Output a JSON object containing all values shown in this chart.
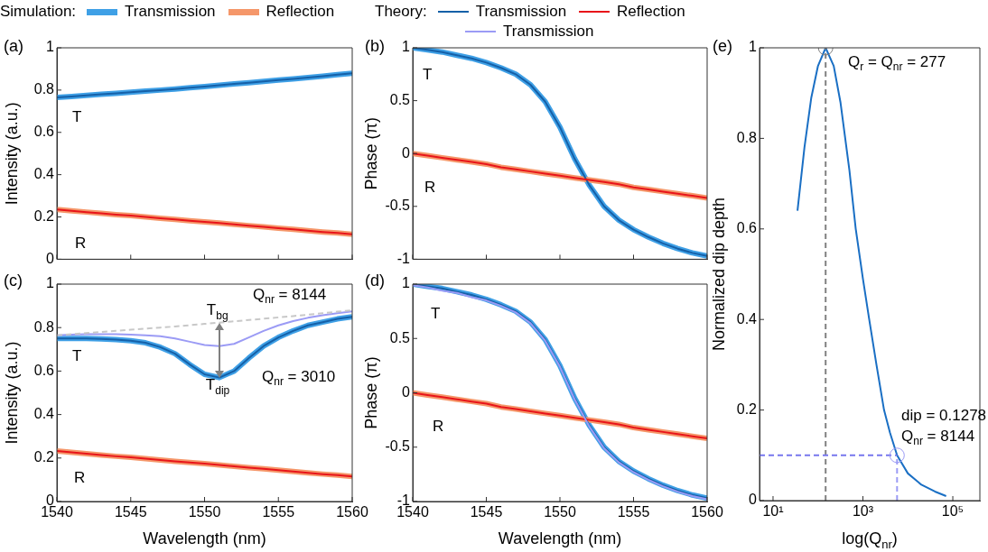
{
  "chart_data": [
    {
      "type": "line",
      "title": "(a)",
      "ylabel": "Intensity (a.u.)",
      "x": [
        1540,
        1541,
        1542,
        1543,
        1544,
        1545,
        1546,
        1547,
        1548,
        1549,
        1550,
        1551,
        1552,
        1553,
        1554,
        1555,
        1556,
        1557,
        1558,
        1559,
        1560
      ],
      "xlim": [
        1540,
        1560
      ],
      "xticks": [
        1540,
        1545,
        1550,
        1555,
        1560
      ],
      "ylim": [
        0,
        1
      ],
      "yticks": [
        0,
        0.2,
        0.4,
        0.6,
        0.8,
        1
      ],
      "tick_labels": "y",
      "series": [
        {
          "color": "#3fa0e6",
          "values": [
            0.765,
            0.77,
            0.775,
            0.78,
            0.785,
            0.79,
            0.795,
            0.8,
            0.805,
            0.811,
            0.817,
            0.823,
            0.829,
            0.835,
            0.841,
            0.847,
            0.853,
            0.859,
            0.866,
            0.873,
            0.88
          ]
        },
        {
          "color": "#f5976a",
          "values": [
            0.235,
            0.229,
            0.223,
            0.217,
            0.211,
            0.206,
            0.2,
            0.194,
            0.188,
            0.182,
            0.177,
            0.171,
            0.165,
            0.159,
            0.153,
            0.147,
            0.141,
            0.135,
            0.129,
            0.124,
            0.118
          ]
        },
        {
          "color": "#1560a8",
          "values": [
            0.765,
            0.77,
            0.775,
            0.78,
            0.785,
            0.79,
            0.795,
            0.8,
            0.805,
            0.811,
            0.817,
            0.823,
            0.829,
            0.835,
            0.841,
            0.847,
            0.853,
            0.859,
            0.866,
            0.873,
            0.88
          ]
        },
        {
          "color": "#e8141a",
          "values": [
            0.235,
            0.229,
            0.223,
            0.217,
            0.211,
            0.206,
            0.2,
            0.194,
            0.188,
            0.182,
            0.177,
            0.171,
            0.165,
            0.159,
            0.153,
            0.147,
            0.141,
            0.135,
            0.129,
            0.124,
            0.118
          ]
        }
      ],
      "annotations": [
        "T",
        "R"
      ]
    },
    {
      "type": "line",
      "title": "(b)",
      "ylabel": "Phase (π)",
      "x": [
        1540,
        1541,
        1542,
        1543,
        1544,
        1545,
        1546,
        1547,
        1548,
        1549,
        1550,
        1551,
        1552,
        1553,
        1554,
        1555,
        1556,
        1557,
        1558,
        1559,
        1560
      ],
      "xlim": [
        1540,
        1560
      ],
      "xticks": [
        1540,
        1545,
        1550,
        1555,
        1560
      ],
      "ylim": [
        -1,
        1
      ],
      "yticks": [
        -1,
        -0.5,
        0,
        0.5,
        1
      ],
      "tick_labels": "y",
      "series": [
        {
          "color": "#3fa0e6",
          "values": [
            1,
            0.98,
            0.96,
            0.93,
            0.9,
            0.86,
            0.81,
            0.75,
            0.65,
            0.49,
            0.25,
            -0.05,
            -0.3,
            -0.5,
            -0.63,
            -0.72,
            -0.79,
            -0.85,
            -0.9,
            -0.94,
            -0.97
          ]
        },
        {
          "color": "#f5976a",
          "values": [
            0,
            -0.02,
            -0.04,
            -0.06,
            -0.08,
            -0.1,
            -0.13,
            -0.15,
            -0.17,
            -0.19,
            -0.21,
            -0.23,
            -0.25,
            -0.27,
            -0.29,
            -0.32,
            -0.34,
            -0.36,
            -0.38,
            -0.4,
            -0.42
          ]
        },
        {
          "color": "#1560a8",
          "values": [
            1,
            0.98,
            0.96,
            0.93,
            0.9,
            0.86,
            0.81,
            0.75,
            0.65,
            0.49,
            0.25,
            -0.05,
            -0.3,
            -0.5,
            -0.63,
            -0.72,
            -0.79,
            -0.85,
            -0.9,
            -0.94,
            -0.97
          ]
        },
        {
          "color": "#e8141a",
          "values": [
            0,
            -0.02,
            -0.04,
            -0.06,
            -0.08,
            -0.1,
            -0.13,
            -0.15,
            -0.17,
            -0.19,
            -0.21,
            -0.23,
            -0.25,
            -0.27,
            -0.29,
            -0.32,
            -0.34,
            -0.36,
            -0.38,
            -0.4,
            -0.42
          ]
        }
      ],
      "annotations": [
        "T",
        "R"
      ]
    },
    {
      "type": "line",
      "title": "(c)",
      "xlabel": "Wavelength (nm)",
      "ylabel": "Intensity (a.u.)",
      "x": [
        1540,
        1541,
        1542,
        1543,
        1544,
        1545,
        1546,
        1547,
        1548,
        1549,
        1550,
        1551,
        1552,
        1553,
        1554,
        1555,
        1556,
        1557,
        1558,
        1559,
        1560
      ],
      "xlim": [
        1540,
        1560
      ],
      "xticks": [
        1540,
        1545,
        1550,
        1555,
        1560
      ],
      "ylim": [
        0,
        1
      ],
      "yticks": [
        0,
        0.2,
        0.4,
        0.6,
        0.8,
        1
      ],
      "legend": "top",
      "series": [
        {
          "name": "Transmission",
          "color": "#3fa0e6",
          "values": [
            0.75,
            0.75,
            0.75,
            0.748,
            0.745,
            0.74,
            0.73,
            0.71,
            0.68,
            0.63,
            0.585,
            0.57,
            0.6,
            0.66,
            0.715,
            0.755,
            0.785,
            0.81,
            0.825,
            0.84,
            0.85
          ]
        },
        {
          "name": "Reflection",
          "color": "#f5976a",
          "values": [
            0.232,
            0.226,
            0.22,
            0.214,
            0.208,
            0.203,
            0.197,
            0.191,
            0.185,
            0.179,
            0.174,
            0.168,
            0.162,
            0.156,
            0.15,
            0.144,
            0.138,
            0.132,
            0.126,
            0.121,
            0.115
          ]
        },
        {
          "name": "Transmission",
          "color": "#1560a8",
          "values": [
            0.75,
            0.75,
            0.75,
            0.748,
            0.745,
            0.74,
            0.73,
            0.71,
            0.68,
            0.63,
            0.585,
            0.57,
            0.6,
            0.66,
            0.715,
            0.755,
            0.785,
            0.81,
            0.825,
            0.84,
            0.85
          ]
        },
        {
          "name": "Reflection",
          "color": "#e8141a",
          "values": [
            0.232,
            0.226,
            0.22,
            0.214,
            0.208,
            0.203,
            0.197,
            0.191,
            0.185,
            0.179,
            0.174,
            0.168,
            0.162,
            0.156,
            0.15,
            0.144,
            0.138,
            0.132,
            0.126,
            0.121,
            0.115
          ]
        },
        {
          "name": "Transmission",
          "color": "#9b9bf5",
          "values": [
            0.765,
            0.768,
            0.77,
            0.77,
            0.77,
            0.768,
            0.765,
            0.76,
            0.75,
            0.735,
            0.72,
            0.715,
            0.725,
            0.755,
            0.785,
            0.81,
            0.83,
            0.845,
            0.857,
            0.866,
            0.875
          ]
        },
        {
          "color": "#c8c8c8",
          "line_style": "dashed",
          "values": [
            0.765,
            0.77,
            0.775,
            0.78,
            0.785,
            0.79,
            0.795,
            0.8,
            0.805,
            0.811,
            0.817,
            0.823,
            0.829,
            0.835,
            0.841,
            0.847,
            0.853,
            0.859,
            0.866,
            0.873,
            0.88
          ]
        }
      ],
      "annotations": [
        "Simulation:",
        "Theory:",
        "T",
        "R",
        {
          "text": "T$_{bg}$",
          "x": 1551,
          "y": 0.823
        },
        {
          "text": "T$_{dip}$",
          "x": 1551,
          "y": 0.57
        },
        "Q$_{nr}$ = 8144",
        "Q$_{nr}$ = 3010"
      ]
    },
    {
      "type": "line",
      "title": "(d)",
      "xlabel": "Wavelength (nm)",
      "ylabel": "Phase (π)",
      "x": [
        1540,
        1541,
        1542,
        1543,
        1544,
        1545,
        1546,
        1547,
        1548,
        1549,
        1550,
        1551,
        1552,
        1553,
        1554,
        1555,
        1556,
        1557,
        1558,
        1559,
        1560
      ],
      "xlim": [
        1540,
        1560
      ],
      "xticks": [
        1540,
        1545,
        1550,
        1555,
        1560
      ],
      "ylim": [
        -1,
        1
      ],
      "yticks": [
        -1,
        -0.5,
        0,
        0.5,
        1
      ],
      "series": [
        {
          "color": "#3fa0e6",
          "values": [
            1,
            0.98,
            0.96,
            0.93,
            0.9,
            0.86,
            0.81,
            0.75,
            0.65,
            0.49,
            0.25,
            -0.05,
            -0.3,
            -0.5,
            -0.63,
            -0.72,
            -0.79,
            -0.85,
            -0.9,
            -0.94,
            -0.97
          ]
        },
        {
          "color": "#f5976a",
          "values": [
            0,
            -0.02,
            -0.04,
            -0.06,
            -0.08,
            -0.1,
            -0.13,
            -0.15,
            -0.17,
            -0.19,
            -0.21,
            -0.23,
            -0.25,
            -0.27,
            -0.29,
            -0.32,
            -0.34,
            -0.36,
            -0.38,
            -0.4,
            -0.42
          ]
        },
        {
          "color": "#1560a8",
          "values": [
            1,
            0.98,
            0.96,
            0.93,
            0.9,
            0.86,
            0.81,
            0.75,
            0.65,
            0.49,
            0.25,
            -0.05,
            -0.3,
            -0.5,
            -0.63,
            -0.72,
            -0.79,
            -0.85,
            -0.9,
            -0.94,
            -0.97
          ]
        },
        {
          "color": "#e8141a",
          "values": [
            0,
            -0.02,
            -0.04,
            -0.06,
            -0.08,
            -0.1,
            -0.13,
            -0.15,
            -0.17,
            -0.19,
            -0.21,
            -0.23,
            -0.25,
            -0.27,
            -0.29,
            -0.32,
            -0.34,
            -0.36,
            -0.38,
            -0.4,
            -0.42
          ]
        },
        {
          "color": "#9b9bf5",
          "values": [
            0.99,
            0.97,
            0.94,
            0.92,
            0.88,
            0.85,
            0.8,
            0.74,
            0.64,
            0.48,
            0.24,
            -0.06,
            -0.31,
            -0.51,
            -0.64,
            -0.73,
            -0.8,
            -0.86,
            -0.91,
            -0.95,
            -0.98
          ]
        }
      ],
      "annotations": [
        "T",
        "R"
      ]
    },
    {
      "type": "line",
      "title": "(e)",
      "xlabel": "log(Q$_{nr}$)",
      "ylabel": "Normalized dip depth",
      "log": "x",
      "xlim": [
        5,
        400000
      ],
      "xticks": [
        {
          "value": 10,
          "label": "10¹"
        },
        {
          "value": 1000,
          "label": "10³"
        },
        {
          "value": 100000,
          "label": "10⁵"
        }
      ],
      "ylim": [
        0,
        1
      ],
      "yticks": [
        0,
        0.2,
        0.4,
        0.6,
        0.8,
        1
      ],
      "series": [
        {
          "color": "#1a6fc4",
          "x": [
            35,
            50,
            71,
            100,
            148,
            224,
            316,
            500,
            692,
            1000,
            1380,
            2000,
            2950,
            4000,
            5750,
            10000,
            20000,
            40000,
            71000
          ],
          "values": [
            0.64,
            0.78,
            0.89,
            0.96,
            1,
            0.96,
            0.88,
            0.73,
            0.6,
            0.49,
            0.4,
            0.3,
            0.2,
            0.15,
            0.1,
            0.06,
            0.035,
            0.02,
            0.01
          ]
        },
        {
          "color": "#808080",
          "line_style": "dashed",
          "x": [
            148,
            148
          ],
          "values": [
            0,
            1
          ]
        },
        {
          "color": "#7777ee",
          "line_style": "dashed",
          "x": [
            5,
            5750
          ],
          "values": [
            0.1,
            0.1
          ]
        },
        {
          "color": "#9b9bf5",
          "line_style": "dashed",
          "x": [
            5750,
            5750
          ],
          "values": [
            0,
            0.1
          ]
        },
        {
          "type": "scatter",
          "marker": "circle",
          "color": "#808080",
          "x": [
            148
          ],
          "values": [
            1
          ]
        },
        {
          "type": "scatter",
          "marker": "circle",
          "color": "#9b9bf5",
          "x": [
            5750
          ],
          "values": [
            0.1
          ]
        }
      ],
      "annotations": [
        "Q$_{r}$ = Q$_{nr}$ = 277",
        "dip = 0.1278",
        "Q$_{nr}$ = 8144"
      ]
    }
  ]
}
